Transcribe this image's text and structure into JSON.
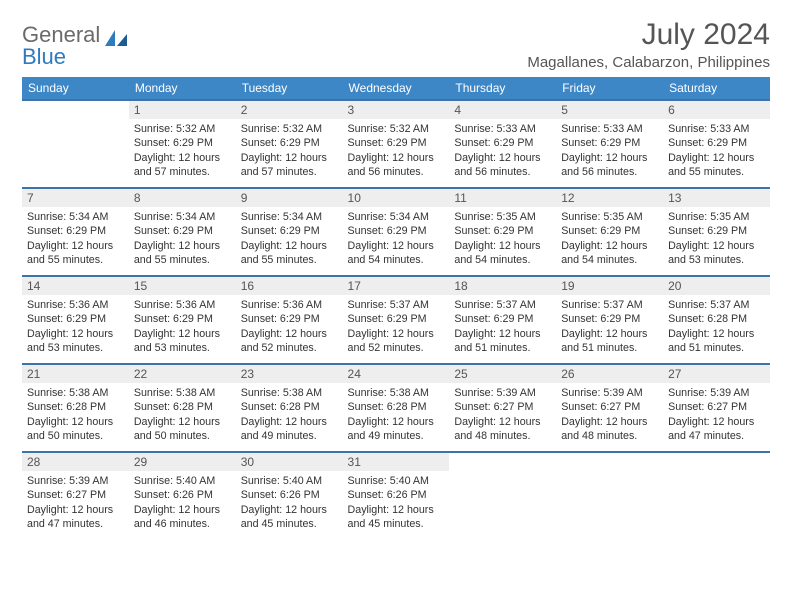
{
  "brand": {
    "part1": "General",
    "part2": "Blue"
  },
  "title": "July 2024",
  "location": "Magallanes, Calabarzon, Philippines",
  "colors": {
    "header_bg": "#3d87c7",
    "row_border": "#3d74a8",
    "daynum_bg": "#eeeeee",
    "text": "#333333",
    "brand_gray": "#6a6a6a",
    "brand_blue": "#2f7bbf"
  },
  "weekdays": [
    "Sunday",
    "Monday",
    "Tuesday",
    "Wednesday",
    "Thursday",
    "Friday",
    "Saturday"
  ],
  "weeks": [
    [
      {
        "n": "",
        "sunrise": "",
        "sunset": "",
        "daylight": ""
      },
      {
        "n": "1",
        "sunrise": "5:32 AM",
        "sunset": "6:29 PM",
        "daylight": "12 hours and 57 minutes."
      },
      {
        "n": "2",
        "sunrise": "5:32 AM",
        "sunset": "6:29 PM",
        "daylight": "12 hours and 57 minutes."
      },
      {
        "n": "3",
        "sunrise": "5:32 AM",
        "sunset": "6:29 PM",
        "daylight": "12 hours and 56 minutes."
      },
      {
        "n": "4",
        "sunrise": "5:33 AM",
        "sunset": "6:29 PM",
        "daylight": "12 hours and 56 minutes."
      },
      {
        "n": "5",
        "sunrise": "5:33 AM",
        "sunset": "6:29 PM",
        "daylight": "12 hours and 56 minutes."
      },
      {
        "n": "6",
        "sunrise": "5:33 AM",
        "sunset": "6:29 PM",
        "daylight": "12 hours and 55 minutes."
      }
    ],
    [
      {
        "n": "7",
        "sunrise": "5:34 AM",
        "sunset": "6:29 PM",
        "daylight": "12 hours and 55 minutes."
      },
      {
        "n": "8",
        "sunrise": "5:34 AM",
        "sunset": "6:29 PM",
        "daylight": "12 hours and 55 minutes."
      },
      {
        "n": "9",
        "sunrise": "5:34 AM",
        "sunset": "6:29 PM",
        "daylight": "12 hours and 55 minutes."
      },
      {
        "n": "10",
        "sunrise": "5:34 AM",
        "sunset": "6:29 PM",
        "daylight": "12 hours and 54 minutes."
      },
      {
        "n": "11",
        "sunrise": "5:35 AM",
        "sunset": "6:29 PM",
        "daylight": "12 hours and 54 minutes."
      },
      {
        "n": "12",
        "sunrise": "5:35 AM",
        "sunset": "6:29 PM",
        "daylight": "12 hours and 54 minutes."
      },
      {
        "n": "13",
        "sunrise": "5:35 AM",
        "sunset": "6:29 PM",
        "daylight": "12 hours and 53 minutes."
      }
    ],
    [
      {
        "n": "14",
        "sunrise": "5:36 AM",
        "sunset": "6:29 PM",
        "daylight": "12 hours and 53 minutes."
      },
      {
        "n": "15",
        "sunrise": "5:36 AM",
        "sunset": "6:29 PM",
        "daylight": "12 hours and 53 minutes."
      },
      {
        "n": "16",
        "sunrise": "5:36 AM",
        "sunset": "6:29 PM",
        "daylight": "12 hours and 52 minutes."
      },
      {
        "n": "17",
        "sunrise": "5:37 AM",
        "sunset": "6:29 PM",
        "daylight": "12 hours and 52 minutes."
      },
      {
        "n": "18",
        "sunrise": "5:37 AM",
        "sunset": "6:29 PM",
        "daylight": "12 hours and 51 minutes."
      },
      {
        "n": "19",
        "sunrise": "5:37 AM",
        "sunset": "6:29 PM",
        "daylight": "12 hours and 51 minutes."
      },
      {
        "n": "20",
        "sunrise": "5:37 AM",
        "sunset": "6:28 PM",
        "daylight": "12 hours and 51 minutes."
      }
    ],
    [
      {
        "n": "21",
        "sunrise": "5:38 AM",
        "sunset": "6:28 PM",
        "daylight": "12 hours and 50 minutes."
      },
      {
        "n": "22",
        "sunrise": "5:38 AM",
        "sunset": "6:28 PM",
        "daylight": "12 hours and 50 minutes."
      },
      {
        "n": "23",
        "sunrise": "5:38 AM",
        "sunset": "6:28 PM",
        "daylight": "12 hours and 49 minutes."
      },
      {
        "n": "24",
        "sunrise": "5:38 AM",
        "sunset": "6:28 PM",
        "daylight": "12 hours and 49 minutes."
      },
      {
        "n": "25",
        "sunrise": "5:39 AM",
        "sunset": "6:27 PM",
        "daylight": "12 hours and 48 minutes."
      },
      {
        "n": "26",
        "sunrise": "5:39 AM",
        "sunset": "6:27 PM",
        "daylight": "12 hours and 48 minutes."
      },
      {
        "n": "27",
        "sunrise": "5:39 AM",
        "sunset": "6:27 PM",
        "daylight": "12 hours and 47 minutes."
      }
    ],
    [
      {
        "n": "28",
        "sunrise": "5:39 AM",
        "sunset": "6:27 PM",
        "daylight": "12 hours and 47 minutes."
      },
      {
        "n": "29",
        "sunrise": "5:40 AM",
        "sunset": "6:26 PM",
        "daylight": "12 hours and 46 minutes."
      },
      {
        "n": "30",
        "sunrise": "5:40 AM",
        "sunset": "6:26 PM",
        "daylight": "12 hours and 45 minutes."
      },
      {
        "n": "31",
        "sunrise": "5:40 AM",
        "sunset": "6:26 PM",
        "daylight": "12 hours and 45 minutes."
      },
      {
        "n": "",
        "sunrise": "",
        "sunset": "",
        "daylight": ""
      },
      {
        "n": "",
        "sunrise": "",
        "sunset": "",
        "daylight": ""
      },
      {
        "n": "",
        "sunrise": "",
        "sunset": "",
        "daylight": ""
      }
    ]
  ],
  "labels": {
    "sunrise": "Sunrise: ",
    "sunset": "Sunset: ",
    "daylight": "Daylight: "
  }
}
